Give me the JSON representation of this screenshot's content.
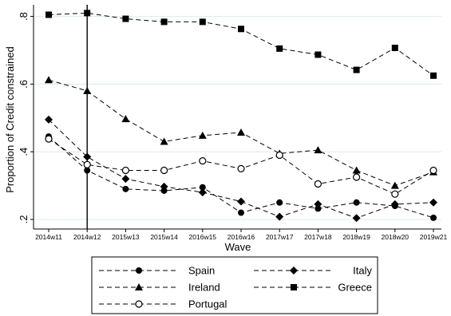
{
  "chart_data": {
    "type": "line",
    "ylabel": "Proportion of Credit constrained",
    "xlabel": "Wave",
    "ylim": [
      0.2,
      0.8
    ],
    "grid": true,
    "categories": [
      "2014w11",
      "2014w12",
      "2015w13",
      "2015w14",
      "2016w15",
      "2016w16",
      "2017w17",
      "2017w18",
      "2018w19",
      "2018w20",
      "2019w21"
    ],
    "yticks": [
      {
        "value": 0.2,
        "label": ".2"
      },
      {
        "value": 0.4,
        "label": ".4"
      },
      {
        "value": 0.6,
        "label": ".6"
      },
      {
        "value": 0.8,
        "label": ".8"
      }
    ],
    "reference_line": {
      "category": "2014w12"
    },
    "legend_position": "bottom",
    "series": [
      {
        "name": "Spain",
        "marker": "circle-filled",
        "values": [
          0.445,
          0.345,
          0.29,
          0.285,
          0.295,
          0.22,
          0.25,
          0.232,
          0.25,
          0.24,
          0.205
        ]
      },
      {
        "name": "Italy",
        "marker": "diamond-filled",
        "values": [
          0.495,
          0.385,
          0.32,
          0.297,
          0.28,
          0.253,
          0.208,
          0.245,
          0.204,
          0.245,
          0.25
        ]
      },
      {
        "name": "Ireland",
        "marker": "triangle-filled",
        "values": [
          0.612,
          0.58,
          0.497,
          0.43,
          0.448,
          0.457,
          0.395,
          0.405,
          0.345,
          0.3,
          0.34
        ]
      },
      {
        "name": "Greece",
        "marker": "square-filled",
        "values": [
          0.805,
          0.81,
          0.793,
          0.784,
          0.784,
          0.763,
          0.705,
          0.687,
          0.642,
          0.707,
          0.625
        ]
      },
      {
        "name": "Portugal",
        "marker": "circle-open",
        "values": [
          0.438,
          0.362,
          0.345,
          0.345,
          0.373,
          0.35,
          0.39,
          0.305,
          0.325,
          0.275,
          0.345
        ]
      }
    ]
  }
}
